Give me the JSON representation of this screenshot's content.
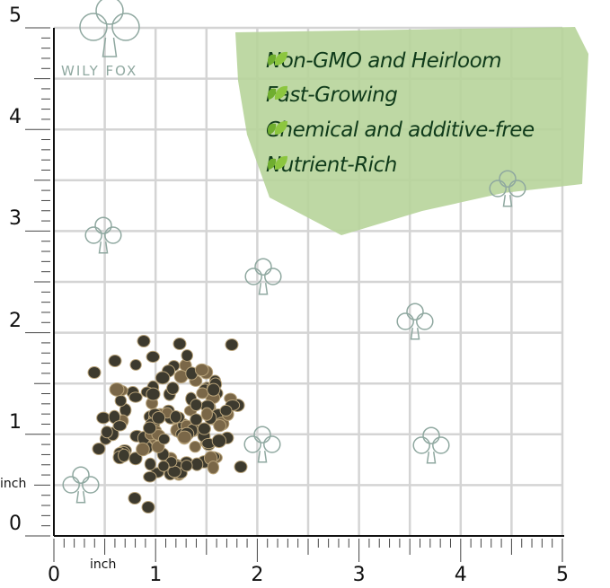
{
  "brand": {
    "name": "WILY FOX",
    "logo_icon": "clover-icon",
    "color": "#8fa8a0"
  },
  "features": [
    {
      "icon": "leaf-icon",
      "label": "Non-GMO and Heirloom"
    },
    {
      "icon": "leaf-icon",
      "label": "Fast-Growing"
    },
    {
      "icon": "leaf-icon",
      "label": "Chemical and additive-free"
    },
    {
      "icon": "leaf-icon",
      "label": "Nutrient-Rich"
    }
  ],
  "ruler": {
    "unit_label_x": "inch",
    "unit_label_y": "inch",
    "x_ticks": [
      "0",
      "1",
      "2",
      "3",
      "4",
      "5"
    ],
    "y_ticks": [
      "0",
      "1",
      "2",
      "3",
      "4",
      "5"
    ]
  },
  "colors": {
    "panel": "#b7d49a",
    "leaf": "#6fae2f",
    "grid": "#d4d4d4",
    "seed": "#3d3a2e"
  }
}
